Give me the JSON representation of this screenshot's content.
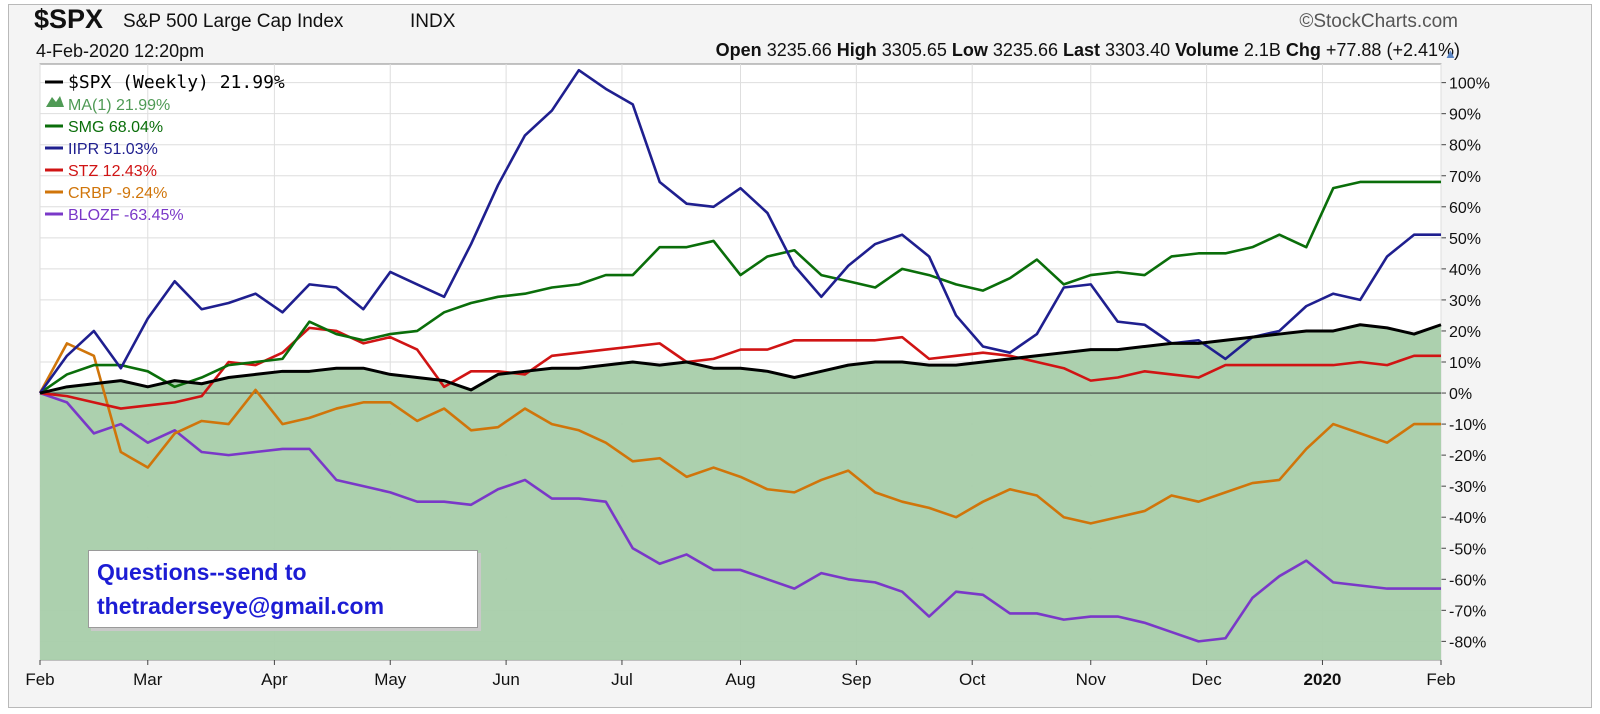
{
  "header": {
    "symbol": "$SPX",
    "name": "S&P 500 Large Cap Index",
    "exchange": "INDX",
    "brand": "©StockCharts.com",
    "date": "4-Feb-2020 12:20pm",
    "open_label": "Open",
    "open": "3235.66",
    "high_label": "High",
    "high": "3305.65",
    "low_label": "Low",
    "low": "3235.66",
    "last_label": "Last",
    "last": "3303.40",
    "volume_label": "Volume",
    "volume": "2.1B",
    "chg_label": "Chg",
    "chg": "+77.88 (+2.41%)"
  },
  "note": {
    "line1": "Questions--send to",
    "line2": "thetraderseye@gmail.com"
  },
  "chart_data": {
    "type": "line",
    "title": "$SPX S&P 500 Large Cap Index INDX",
    "x_unit": "weeks since start (Feb 2019 - Feb 2020)",
    "x_ticks": [
      {
        "label": "Feb",
        "x": 0
      },
      {
        "label": "Mar",
        "x": 4
      },
      {
        "label": "Apr",
        "x": 8.7
      },
      {
        "label": "May",
        "x": 13
      },
      {
        "label": "Jun",
        "x": 17.3
      },
      {
        "label": "Jul",
        "x": 21.6
      },
      {
        "label": "Aug",
        "x": 26
      },
      {
        "label": "Sep",
        "x": 30.3
      },
      {
        "label": "Oct",
        "x": 34.6
      },
      {
        "label": "Nov",
        "x": 39
      },
      {
        "label": "Dec",
        "x": 43.3
      },
      {
        "label": "2020",
        "x": 47.6,
        "bold": true
      },
      {
        "label": "Feb",
        "x": 52
      }
    ],
    "y_ticks": [
      100,
      90,
      80,
      70,
      60,
      50,
      40,
      30,
      20,
      10,
      0,
      -10,
      -20,
      -30,
      -40,
      -50,
      -60,
      -70,
      -80
    ],
    "y_tick_suffix": "%",
    "ylim": [
      -86,
      106
    ],
    "xlim": [
      0,
      52
    ],
    "grid": true,
    "legend_position": "top-left",
    "area_color": "#a8ceaa",
    "series": [
      {
        "name": "$SPX (Weekly)",
        "legend_value": "21.99%",
        "color": "#000000",
        "values": [
          0,
          2,
          3,
          4,
          2,
          4,
          3,
          5,
          6,
          7,
          7,
          8,
          8,
          6,
          5,
          4,
          1,
          6,
          7,
          8,
          8,
          9,
          10,
          9,
          10,
          8,
          8,
          7,
          5,
          7,
          9,
          10,
          10,
          9,
          9,
          10,
          11,
          12,
          13,
          14,
          14,
          15,
          16,
          16,
          17,
          18,
          19,
          20,
          20,
          22,
          21,
          19,
          22
        ]
      },
      {
        "name": "MA(1)",
        "legend_value": "21.99%",
        "color": "#4f9a55",
        "is_area": true,
        "values": [
          0,
          2,
          3,
          4,
          2,
          4,
          3,
          5,
          6,
          7,
          7,
          8,
          8,
          6,
          5,
          4,
          1,
          6,
          7,
          8,
          8,
          9,
          10,
          9,
          10,
          8,
          8,
          7,
          5,
          7,
          9,
          10,
          10,
          9,
          9,
          10,
          11,
          12,
          13,
          14,
          14,
          15,
          16,
          16,
          17,
          18,
          19,
          20,
          20,
          22,
          21,
          19,
          22
        ]
      },
      {
        "name": "SMG",
        "legend_value": "68.04%",
        "color": "#0a6e0a",
        "values": [
          0,
          6,
          9,
          9,
          7,
          2,
          5,
          9,
          10,
          11,
          23,
          19,
          17,
          19,
          20,
          26,
          29,
          31,
          32,
          34,
          35,
          38,
          38,
          47,
          47,
          49,
          38,
          44,
          46,
          38,
          36,
          34,
          40,
          38,
          35,
          33,
          37,
          43,
          35,
          38,
          39,
          38,
          44,
          45,
          45,
          47,
          51,
          47,
          66,
          68,
          68,
          68,
          68
        ]
      },
      {
        "name": "IIPR",
        "legend_value": "51.03%",
        "color": "#1f1f8f",
        "values": [
          0,
          12,
          20,
          8,
          24,
          36,
          27,
          29,
          32,
          26,
          35,
          34,
          27,
          39,
          35,
          31,
          48,
          67,
          83,
          91,
          104,
          98,
          93,
          68,
          61,
          60,
          66,
          58,
          41,
          31,
          41,
          48,
          51,
          44,
          25,
          15,
          13,
          19,
          34,
          35,
          23,
          22,
          16,
          17,
          11,
          18,
          20,
          28,
          32,
          30,
          44,
          51,
          51
        ]
      },
      {
        "name": "STZ",
        "legend_value": "12.43%",
        "color": "#d01414",
        "values": [
          0,
          -1,
          -3,
          -5,
          -4,
          -3,
          -1,
          10,
          9,
          13,
          21,
          20,
          16,
          18,
          14,
          2,
          7,
          7,
          6,
          12,
          13,
          14,
          15,
          16,
          10,
          11,
          14,
          14,
          17,
          17,
          17,
          17,
          18,
          11,
          12,
          13,
          12,
          10,
          8,
          4,
          5,
          7,
          6,
          5,
          9,
          9,
          9,
          9,
          9,
          10,
          9,
          12,
          12
        ]
      },
      {
        "name": "CRBP",
        "legend_value": "-9.24%",
        "color": "#d0750a",
        "values": [
          0,
          16,
          12,
          -19,
          -24,
          -13,
          -9,
          -10,
          1,
          -10,
          -8,
          -5,
          -3,
          -3,
          -9,
          -5,
          -12,
          -11,
          -5,
          -10,
          -12,
          -16,
          -22,
          -21,
          -27,
          -24,
          -27,
          -31,
          -32,
          -28,
          -25,
          -32,
          -35,
          -37,
          -40,
          -35,
          -31,
          -33,
          -40,
          -42,
          -40,
          -38,
          -33,
          -35,
          -32,
          -29,
          -28,
          -18,
          -10,
          -13,
          -16,
          -10,
          -10
        ]
      },
      {
        "name": "BLOZF",
        "legend_value": "-63.45%",
        "color": "#7a38c8",
        "values": [
          0,
          -3,
          -13,
          -10,
          -16,
          -12,
          -19,
          -20,
          -19,
          -18,
          -18,
          -28,
          -30,
          -32,
          -35,
          -35,
          -36,
          -31,
          -28,
          -34,
          -34,
          -35,
          -50,
          -55,
          -52,
          -57,
          -57,
          -60,
          -63,
          -58,
          -60,
          -61,
          -64,
          -72,
          -64,
          -65,
          -71,
          -71,
          -73,
          -72,
          -72,
          -74,
          -77,
          -80,
          -79,
          -66,
          -59,
          -54,
          -61,
          -62,
          -63,
          -63,
          -63
        ]
      }
    ]
  }
}
